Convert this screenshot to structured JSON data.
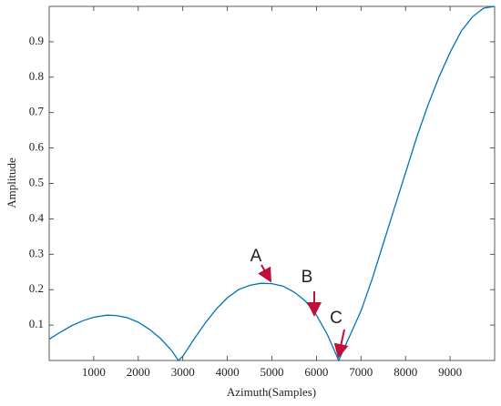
{
  "chart_data": {
    "type": "line",
    "xlabel": "Azimuth(Samples)",
    "ylabel": "Amplitude",
    "x": [
      0,
      250,
      500,
      750,
      1000,
      1300,
      1500,
      1750,
      2000,
      2250,
      2500,
      2750,
      2900,
      3000,
      3250,
      3500,
      3750,
      4000,
      4250,
      4500,
      4750,
      5000,
      5250,
      5500,
      5750,
      6000,
      6250,
      6500,
      6750,
      7000,
      7250,
      7500,
      7750,
      8000,
      8250,
      8500,
      8750,
      9000,
      9250,
      9500,
      9750,
      10000
    ],
    "series": [
      {
        "color": "#0072bd",
        "values": [
          0.06,
          0.08,
          0.098,
          0.112,
          0.122,
          0.128,
          0.127,
          0.121,
          0.108,
          0.088,
          0.062,
          0.028,
          0,
          0.012,
          0.06,
          0.105,
          0.145,
          0.177,
          0.2,
          0.212,
          0.218,
          0.217,
          0.21,
          0.193,
          0.168,
          0.128,
          0.072,
          0,
          0.07,
          0.14,
          0.23,
          0.33,
          0.43,
          0.53,
          0.63,
          0.72,
          0.8,
          0.87,
          0.93,
          0.97,
          0.995,
          1.0
        ]
      }
    ],
    "xlim": [
      0,
      10000
    ],
    "ylim": [
      0,
      1
    ],
    "xticks": [
      1000,
      2000,
      3000,
      4000,
      5000,
      6000,
      7000,
      8000,
      9000
    ],
    "yticks": [
      0.1,
      0.2,
      0.3,
      0.4,
      0.5,
      0.6,
      0.7,
      0.8,
      0.9
    ],
    "annotations": [
      "A",
      "B",
      "C"
    ],
    "annotation_color": "#c0103a"
  }
}
